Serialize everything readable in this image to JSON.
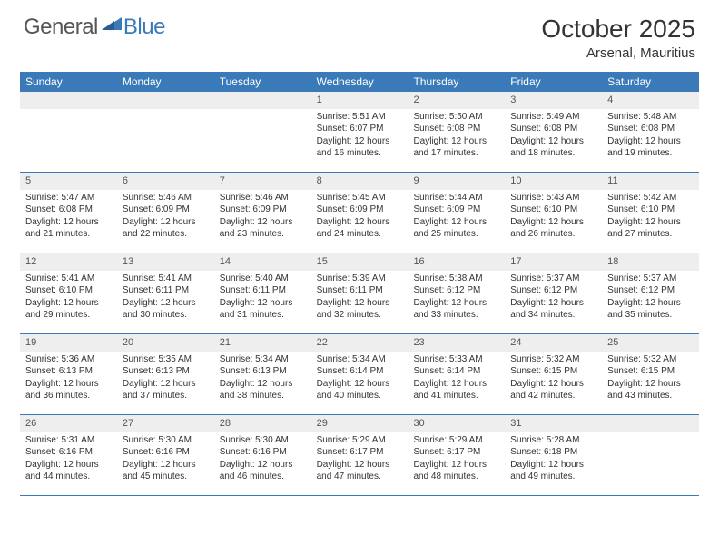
{
  "logo": {
    "part1": "General",
    "part2": "Blue"
  },
  "title": "October 2025",
  "location": "Arsenal, Mauritius",
  "colors": {
    "accent": "#3b7ab8",
    "daybar": "#eeeeee",
    "text": "#333333",
    "logo_gray": "#555555"
  },
  "dayNames": [
    "Sunday",
    "Monday",
    "Tuesday",
    "Wednesday",
    "Thursday",
    "Friday",
    "Saturday"
  ],
  "weeks": [
    [
      {
        "n": "",
        "empty": true
      },
      {
        "n": "",
        "empty": true
      },
      {
        "n": "",
        "empty": true
      },
      {
        "n": "1",
        "sunrise": "5:51 AM",
        "sunset": "6:07 PM",
        "dlh": "12",
        "dlm": "16"
      },
      {
        "n": "2",
        "sunrise": "5:50 AM",
        "sunset": "6:08 PM",
        "dlh": "12",
        "dlm": "17"
      },
      {
        "n": "3",
        "sunrise": "5:49 AM",
        "sunset": "6:08 PM",
        "dlh": "12",
        "dlm": "18"
      },
      {
        "n": "4",
        "sunrise": "5:48 AM",
        "sunset": "6:08 PM",
        "dlh": "12",
        "dlm": "19"
      }
    ],
    [
      {
        "n": "5",
        "sunrise": "5:47 AM",
        "sunset": "6:08 PM",
        "dlh": "12",
        "dlm": "21"
      },
      {
        "n": "6",
        "sunrise": "5:46 AM",
        "sunset": "6:09 PM",
        "dlh": "12",
        "dlm": "22"
      },
      {
        "n": "7",
        "sunrise": "5:46 AM",
        "sunset": "6:09 PM",
        "dlh": "12",
        "dlm": "23"
      },
      {
        "n": "8",
        "sunrise": "5:45 AM",
        "sunset": "6:09 PM",
        "dlh": "12",
        "dlm": "24"
      },
      {
        "n": "9",
        "sunrise": "5:44 AM",
        "sunset": "6:09 PM",
        "dlh": "12",
        "dlm": "25"
      },
      {
        "n": "10",
        "sunrise": "5:43 AM",
        "sunset": "6:10 PM",
        "dlh": "12",
        "dlm": "26"
      },
      {
        "n": "11",
        "sunrise": "5:42 AM",
        "sunset": "6:10 PM",
        "dlh": "12",
        "dlm": "27"
      }
    ],
    [
      {
        "n": "12",
        "sunrise": "5:41 AM",
        "sunset": "6:10 PM",
        "dlh": "12",
        "dlm": "29"
      },
      {
        "n": "13",
        "sunrise": "5:41 AM",
        "sunset": "6:11 PM",
        "dlh": "12",
        "dlm": "30"
      },
      {
        "n": "14",
        "sunrise": "5:40 AM",
        "sunset": "6:11 PM",
        "dlh": "12",
        "dlm": "31"
      },
      {
        "n": "15",
        "sunrise": "5:39 AM",
        "sunset": "6:11 PM",
        "dlh": "12",
        "dlm": "32"
      },
      {
        "n": "16",
        "sunrise": "5:38 AM",
        "sunset": "6:12 PM",
        "dlh": "12",
        "dlm": "33"
      },
      {
        "n": "17",
        "sunrise": "5:37 AM",
        "sunset": "6:12 PM",
        "dlh": "12",
        "dlm": "34"
      },
      {
        "n": "18",
        "sunrise": "5:37 AM",
        "sunset": "6:12 PM",
        "dlh": "12",
        "dlm": "35"
      }
    ],
    [
      {
        "n": "19",
        "sunrise": "5:36 AM",
        "sunset": "6:13 PM",
        "dlh": "12",
        "dlm": "36"
      },
      {
        "n": "20",
        "sunrise": "5:35 AM",
        "sunset": "6:13 PM",
        "dlh": "12",
        "dlm": "37"
      },
      {
        "n": "21",
        "sunrise": "5:34 AM",
        "sunset": "6:13 PM",
        "dlh": "12",
        "dlm": "38"
      },
      {
        "n": "22",
        "sunrise": "5:34 AM",
        "sunset": "6:14 PM",
        "dlh": "12",
        "dlm": "40"
      },
      {
        "n": "23",
        "sunrise": "5:33 AM",
        "sunset": "6:14 PM",
        "dlh": "12",
        "dlm": "41"
      },
      {
        "n": "24",
        "sunrise": "5:32 AM",
        "sunset": "6:15 PM",
        "dlh": "12",
        "dlm": "42"
      },
      {
        "n": "25",
        "sunrise": "5:32 AM",
        "sunset": "6:15 PM",
        "dlh": "12",
        "dlm": "43"
      }
    ],
    [
      {
        "n": "26",
        "sunrise": "5:31 AM",
        "sunset": "6:16 PM",
        "dlh": "12",
        "dlm": "44"
      },
      {
        "n": "27",
        "sunrise": "5:30 AM",
        "sunset": "6:16 PM",
        "dlh": "12",
        "dlm": "45"
      },
      {
        "n": "28",
        "sunrise": "5:30 AM",
        "sunset": "6:16 PM",
        "dlh": "12",
        "dlm": "46"
      },
      {
        "n": "29",
        "sunrise": "5:29 AM",
        "sunset": "6:17 PM",
        "dlh": "12",
        "dlm": "47"
      },
      {
        "n": "30",
        "sunrise": "5:29 AM",
        "sunset": "6:17 PM",
        "dlh": "12",
        "dlm": "48"
      },
      {
        "n": "31",
        "sunrise": "5:28 AM",
        "sunset": "6:18 PM",
        "dlh": "12",
        "dlm": "49"
      },
      {
        "n": "",
        "empty": true
      }
    ]
  ],
  "labels": {
    "sunrise": "Sunrise:",
    "sunset": "Sunset:",
    "daylight": "Daylight:",
    "hours": "hours",
    "and": "and",
    "minutes": "minutes."
  }
}
